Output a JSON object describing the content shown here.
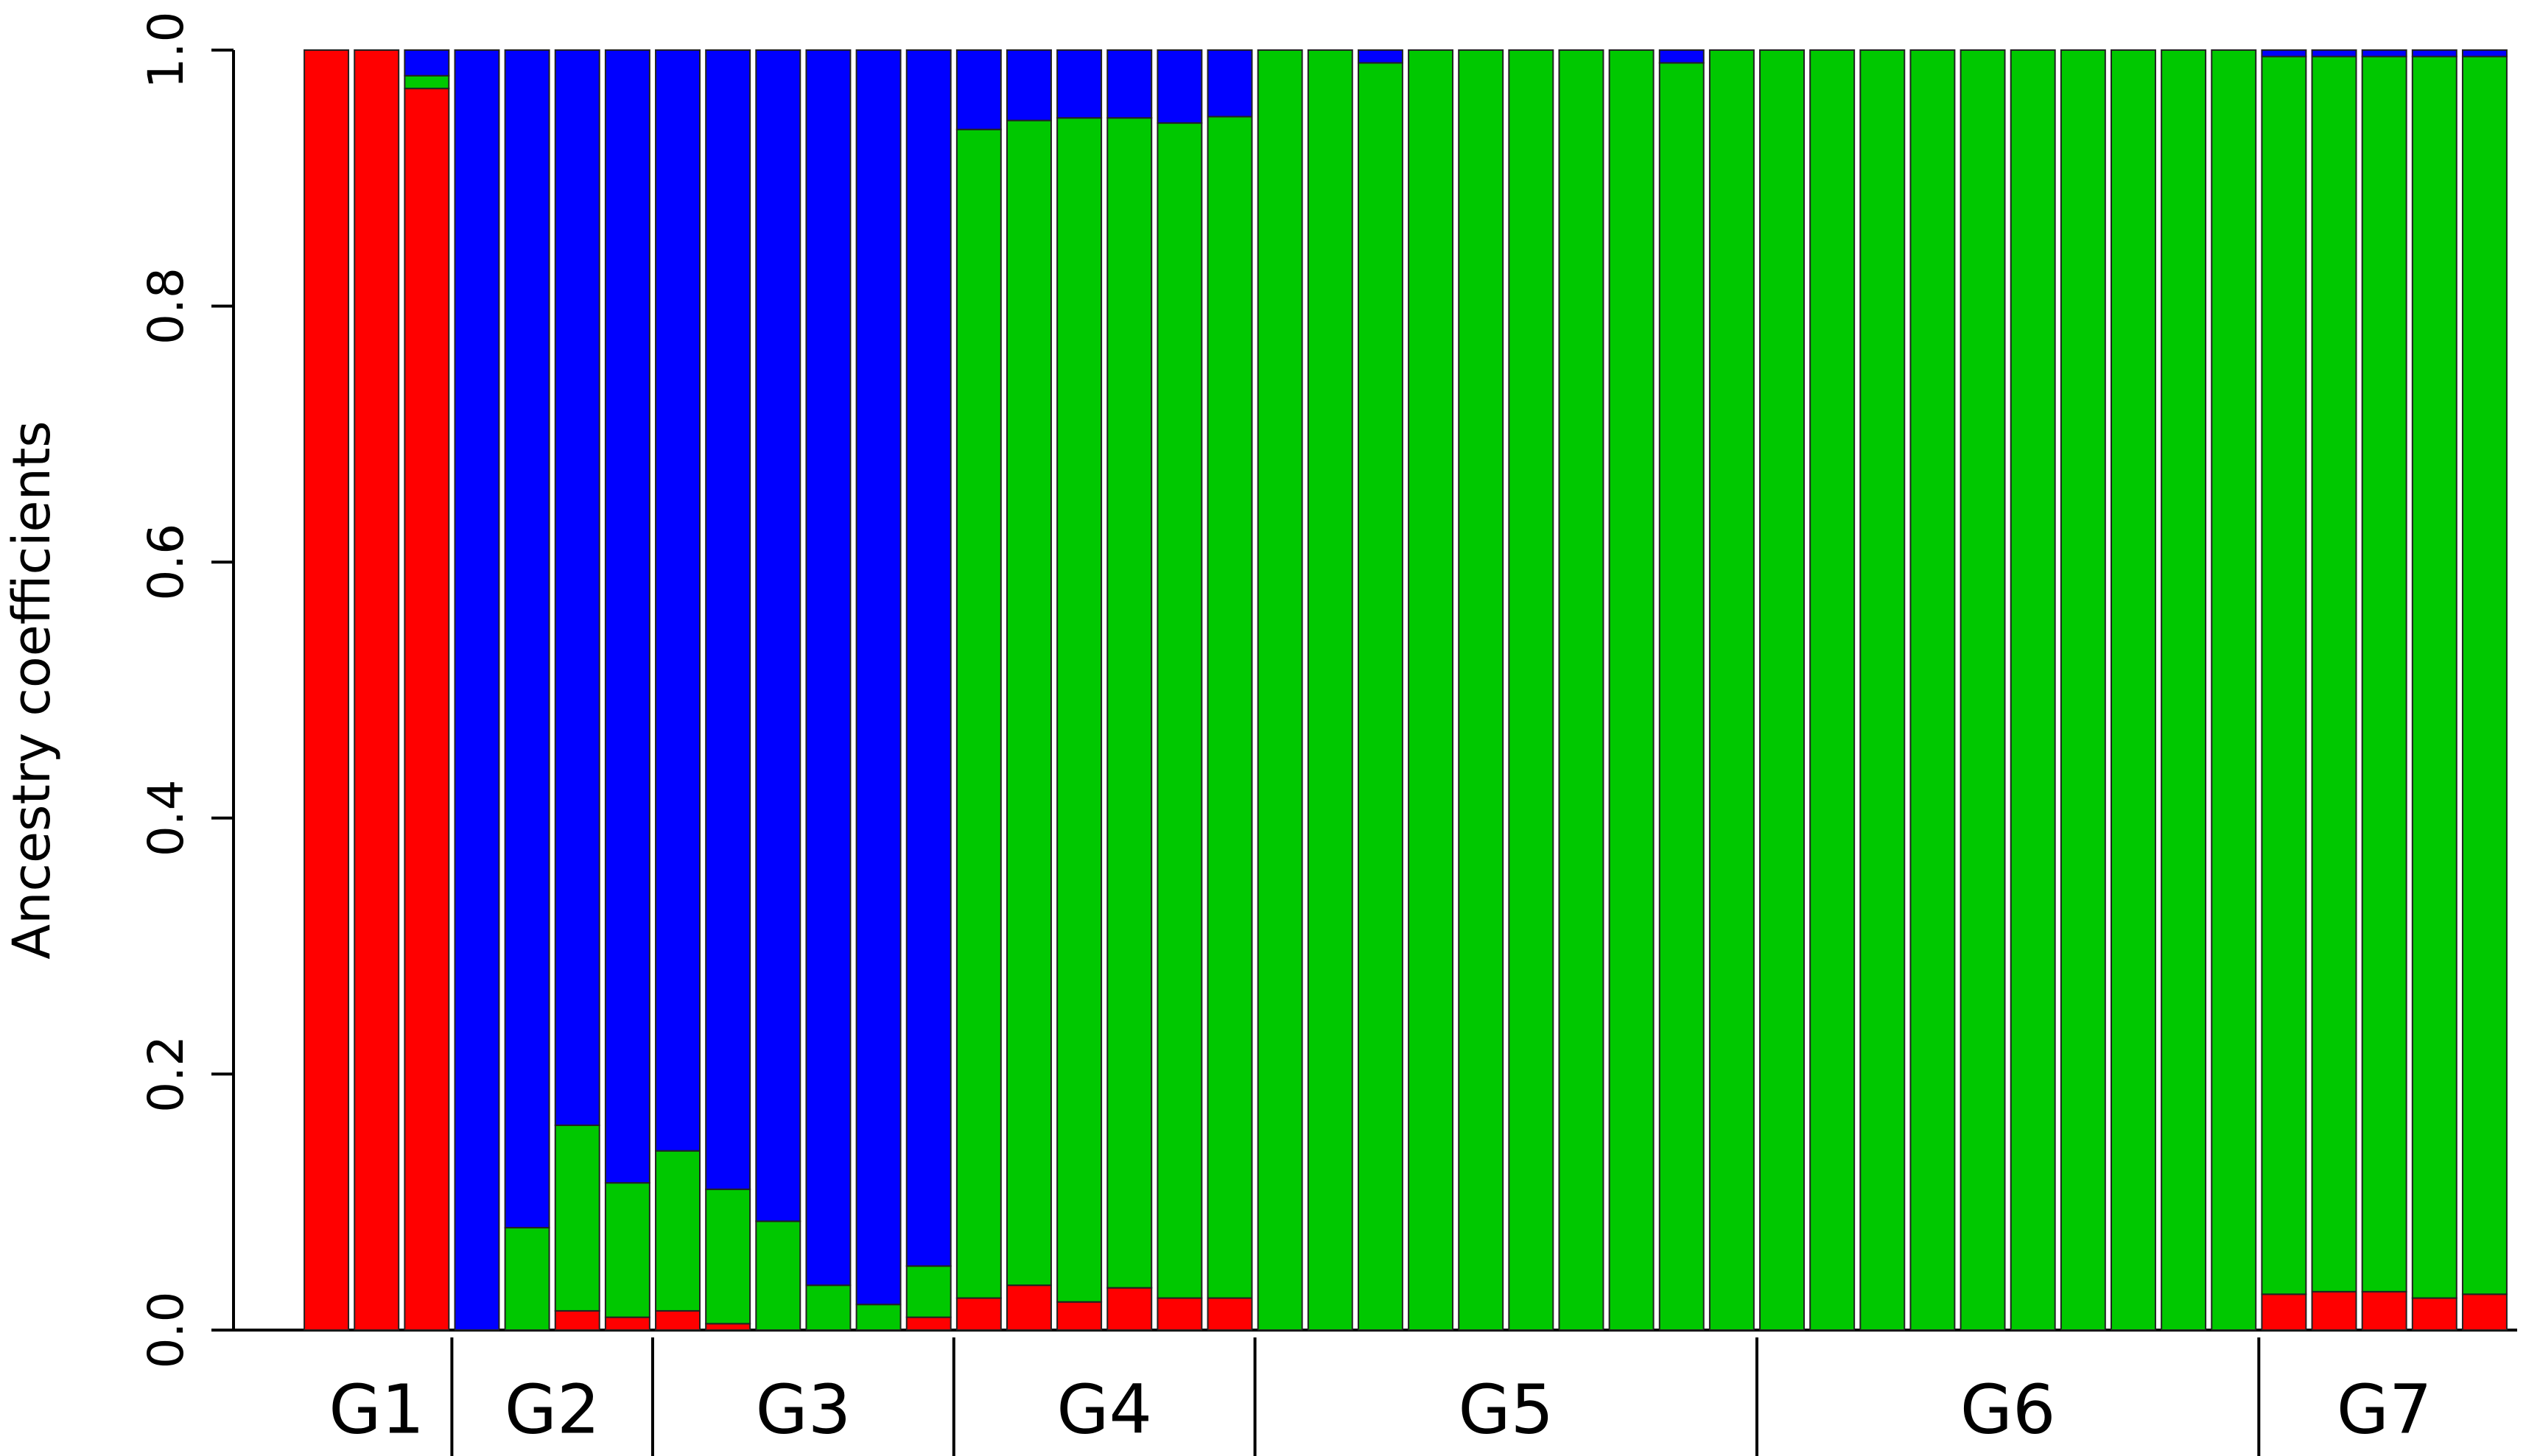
{
  "chart_data": {
    "type": "stacked_bar",
    "y_label": "Ancestry coefficients",
    "categories": [
      "G1",
      "G1",
      "G1",
      "G2",
      "G2",
      "G2",
      "G2",
      "G3",
      "G3",
      "G3",
      "G3",
      "G3",
      "G3",
      "G4",
      "G4",
      "G4",
      "G4",
      "G4",
      "G4",
      "G5",
      "G5",
      "G5",
      "G5",
      "G5",
      "G5",
      "G5",
      "G5",
      "G5",
      "G5",
      "G6",
      "G6",
      "G6",
      "G6",
      "G6",
      "G6",
      "G6",
      "G6",
      "G6",
      "G6",
      "G7",
      "G7",
      "G7",
      "G7",
      "G7"
    ],
    "series": [
      {
        "color": "#ff0000",
        "values": [
          1,
          1,
          0.97,
          0,
          0,
          0.015,
          0.01,
          0.015,
          0.005,
          0,
          0,
          0,
          0.01,
          0.025,
          0.035,
          0.022,
          0.033,
          0.025,
          0.025,
          0,
          0,
          0,
          0,
          0,
          0,
          0,
          0,
          0,
          0,
          0,
          0,
          0,
          0,
          0,
          0,
          0,
          0,
          0,
          0,
          0.028,
          0.03,
          0.03,
          0.025,
          0.028
        ]
      },
      {
        "color": "#00c800",
        "values": [
          0,
          0,
          0.01,
          0,
          0.08,
          0.145,
          0.105,
          0.125,
          0.105,
          0.085,
          0.035,
          0.02,
          0.04,
          0.913,
          0.91,
          0.925,
          0.914,
          0.918,
          0.923,
          1,
          1,
          0.99,
          1,
          1,
          1,
          1,
          1,
          0.99,
          1,
          1,
          1,
          1,
          1,
          1,
          1,
          1,
          1,
          1,
          1,
          0.967,
          0.965,
          0.965,
          0.97,
          0.967
        ]
      },
      {
        "color": "#0000ff",
        "values": [
          0,
          0,
          0.02,
          1,
          0.92,
          0.84,
          0.885,
          0.86,
          0.89,
          0.915,
          0.965,
          0.98,
          0.95,
          0.062,
          0.055,
          0.053,
          0.053,
          0.057,
          0.052,
          0,
          0,
          0.01,
          0,
          0,
          0,
          0,
          0,
          0.01,
          0,
          0,
          0,
          0,
          0,
          0,
          0,
          0,
          0,
          0,
          0,
          0.005,
          0.005,
          0.005,
          0.005,
          0.005
        ]
      }
    ],
    "ylim": [
      0,
      1
    ],
    "yticks": [
      {
        "value": 0,
        "label": "0.0"
      },
      0.2,
      0.4,
      0.6,
      0.8,
      {
        "value": 1,
        "label": "1.0"
      }
    ]
  }
}
